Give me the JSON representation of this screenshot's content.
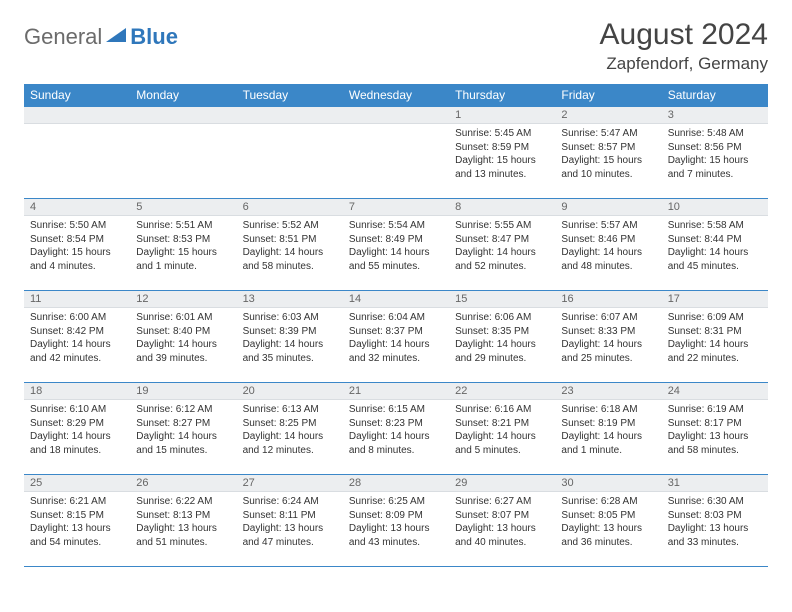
{
  "brand": {
    "word1": "General",
    "word2": "Blue"
  },
  "title": {
    "month": "August 2024",
    "location": "Zapfendorf, Germany"
  },
  "colors": {
    "header_bg": "#3b87c8",
    "header_text": "#ffffff",
    "daynum_bg": "#eceef0",
    "border": "#3b87c8",
    "logo_gray": "#6b6b6b",
    "logo_blue": "#2f77bb",
    "body_text": "#333333",
    "page_bg": "#ffffff"
  },
  "weekdays": [
    "Sunday",
    "Monday",
    "Tuesday",
    "Wednesday",
    "Thursday",
    "Friday",
    "Saturday"
  ],
  "layout": {
    "cols": 7,
    "rows": 5,
    "first_day_col": 4,
    "days_in_month": 31
  },
  "days": [
    {
      "n": 1,
      "sunrise": "5:45 AM",
      "sunset": "8:59 PM",
      "daylight": "15 hours and 13 minutes."
    },
    {
      "n": 2,
      "sunrise": "5:47 AM",
      "sunset": "8:57 PM",
      "daylight": "15 hours and 10 minutes."
    },
    {
      "n": 3,
      "sunrise": "5:48 AM",
      "sunset": "8:56 PM",
      "daylight": "15 hours and 7 minutes."
    },
    {
      "n": 4,
      "sunrise": "5:50 AM",
      "sunset": "8:54 PM",
      "daylight": "15 hours and 4 minutes."
    },
    {
      "n": 5,
      "sunrise": "5:51 AM",
      "sunset": "8:53 PM",
      "daylight": "15 hours and 1 minute."
    },
    {
      "n": 6,
      "sunrise": "5:52 AM",
      "sunset": "8:51 PM",
      "daylight": "14 hours and 58 minutes."
    },
    {
      "n": 7,
      "sunrise": "5:54 AM",
      "sunset": "8:49 PM",
      "daylight": "14 hours and 55 minutes."
    },
    {
      "n": 8,
      "sunrise": "5:55 AM",
      "sunset": "8:47 PM",
      "daylight": "14 hours and 52 minutes."
    },
    {
      "n": 9,
      "sunrise": "5:57 AM",
      "sunset": "8:46 PM",
      "daylight": "14 hours and 48 minutes."
    },
    {
      "n": 10,
      "sunrise": "5:58 AM",
      "sunset": "8:44 PM",
      "daylight": "14 hours and 45 minutes."
    },
    {
      "n": 11,
      "sunrise": "6:00 AM",
      "sunset": "8:42 PM",
      "daylight": "14 hours and 42 minutes."
    },
    {
      "n": 12,
      "sunrise": "6:01 AM",
      "sunset": "8:40 PM",
      "daylight": "14 hours and 39 minutes."
    },
    {
      "n": 13,
      "sunrise": "6:03 AM",
      "sunset": "8:39 PM",
      "daylight": "14 hours and 35 minutes."
    },
    {
      "n": 14,
      "sunrise": "6:04 AM",
      "sunset": "8:37 PM",
      "daylight": "14 hours and 32 minutes."
    },
    {
      "n": 15,
      "sunrise": "6:06 AM",
      "sunset": "8:35 PM",
      "daylight": "14 hours and 29 minutes."
    },
    {
      "n": 16,
      "sunrise": "6:07 AM",
      "sunset": "8:33 PM",
      "daylight": "14 hours and 25 minutes."
    },
    {
      "n": 17,
      "sunrise": "6:09 AM",
      "sunset": "8:31 PM",
      "daylight": "14 hours and 22 minutes."
    },
    {
      "n": 18,
      "sunrise": "6:10 AM",
      "sunset": "8:29 PM",
      "daylight": "14 hours and 18 minutes."
    },
    {
      "n": 19,
      "sunrise": "6:12 AM",
      "sunset": "8:27 PM",
      "daylight": "14 hours and 15 minutes."
    },
    {
      "n": 20,
      "sunrise": "6:13 AM",
      "sunset": "8:25 PM",
      "daylight": "14 hours and 12 minutes."
    },
    {
      "n": 21,
      "sunrise": "6:15 AM",
      "sunset": "8:23 PM",
      "daylight": "14 hours and 8 minutes."
    },
    {
      "n": 22,
      "sunrise": "6:16 AM",
      "sunset": "8:21 PM",
      "daylight": "14 hours and 5 minutes."
    },
    {
      "n": 23,
      "sunrise": "6:18 AM",
      "sunset": "8:19 PM",
      "daylight": "14 hours and 1 minute."
    },
    {
      "n": 24,
      "sunrise": "6:19 AM",
      "sunset": "8:17 PM",
      "daylight": "13 hours and 58 minutes."
    },
    {
      "n": 25,
      "sunrise": "6:21 AM",
      "sunset": "8:15 PM",
      "daylight": "13 hours and 54 minutes."
    },
    {
      "n": 26,
      "sunrise": "6:22 AM",
      "sunset": "8:13 PM",
      "daylight": "13 hours and 51 minutes."
    },
    {
      "n": 27,
      "sunrise": "6:24 AM",
      "sunset": "8:11 PM",
      "daylight": "13 hours and 47 minutes."
    },
    {
      "n": 28,
      "sunrise": "6:25 AM",
      "sunset": "8:09 PM",
      "daylight": "13 hours and 43 minutes."
    },
    {
      "n": 29,
      "sunrise": "6:27 AM",
      "sunset": "8:07 PM",
      "daylight": "13 hours and 40 minutes."
    },
    {
      "n": 30,
      "sunrise": "6:28 AM",
      "sunset": "8:05 PM",
      "daylight": "13 hours and 36 minutes."
    },
    {
      "n": 31,
      "sunrise": "6:30 AM",
      "sunset": "8:03 PM",
      "daylight": "13 hours and 33 minutes."
    }
  ],
  "labels": {
    "sunrise": "Sunrise:",
    "sunset": "Sunset:",
    "daylight": "Daylight:"
  }
}
